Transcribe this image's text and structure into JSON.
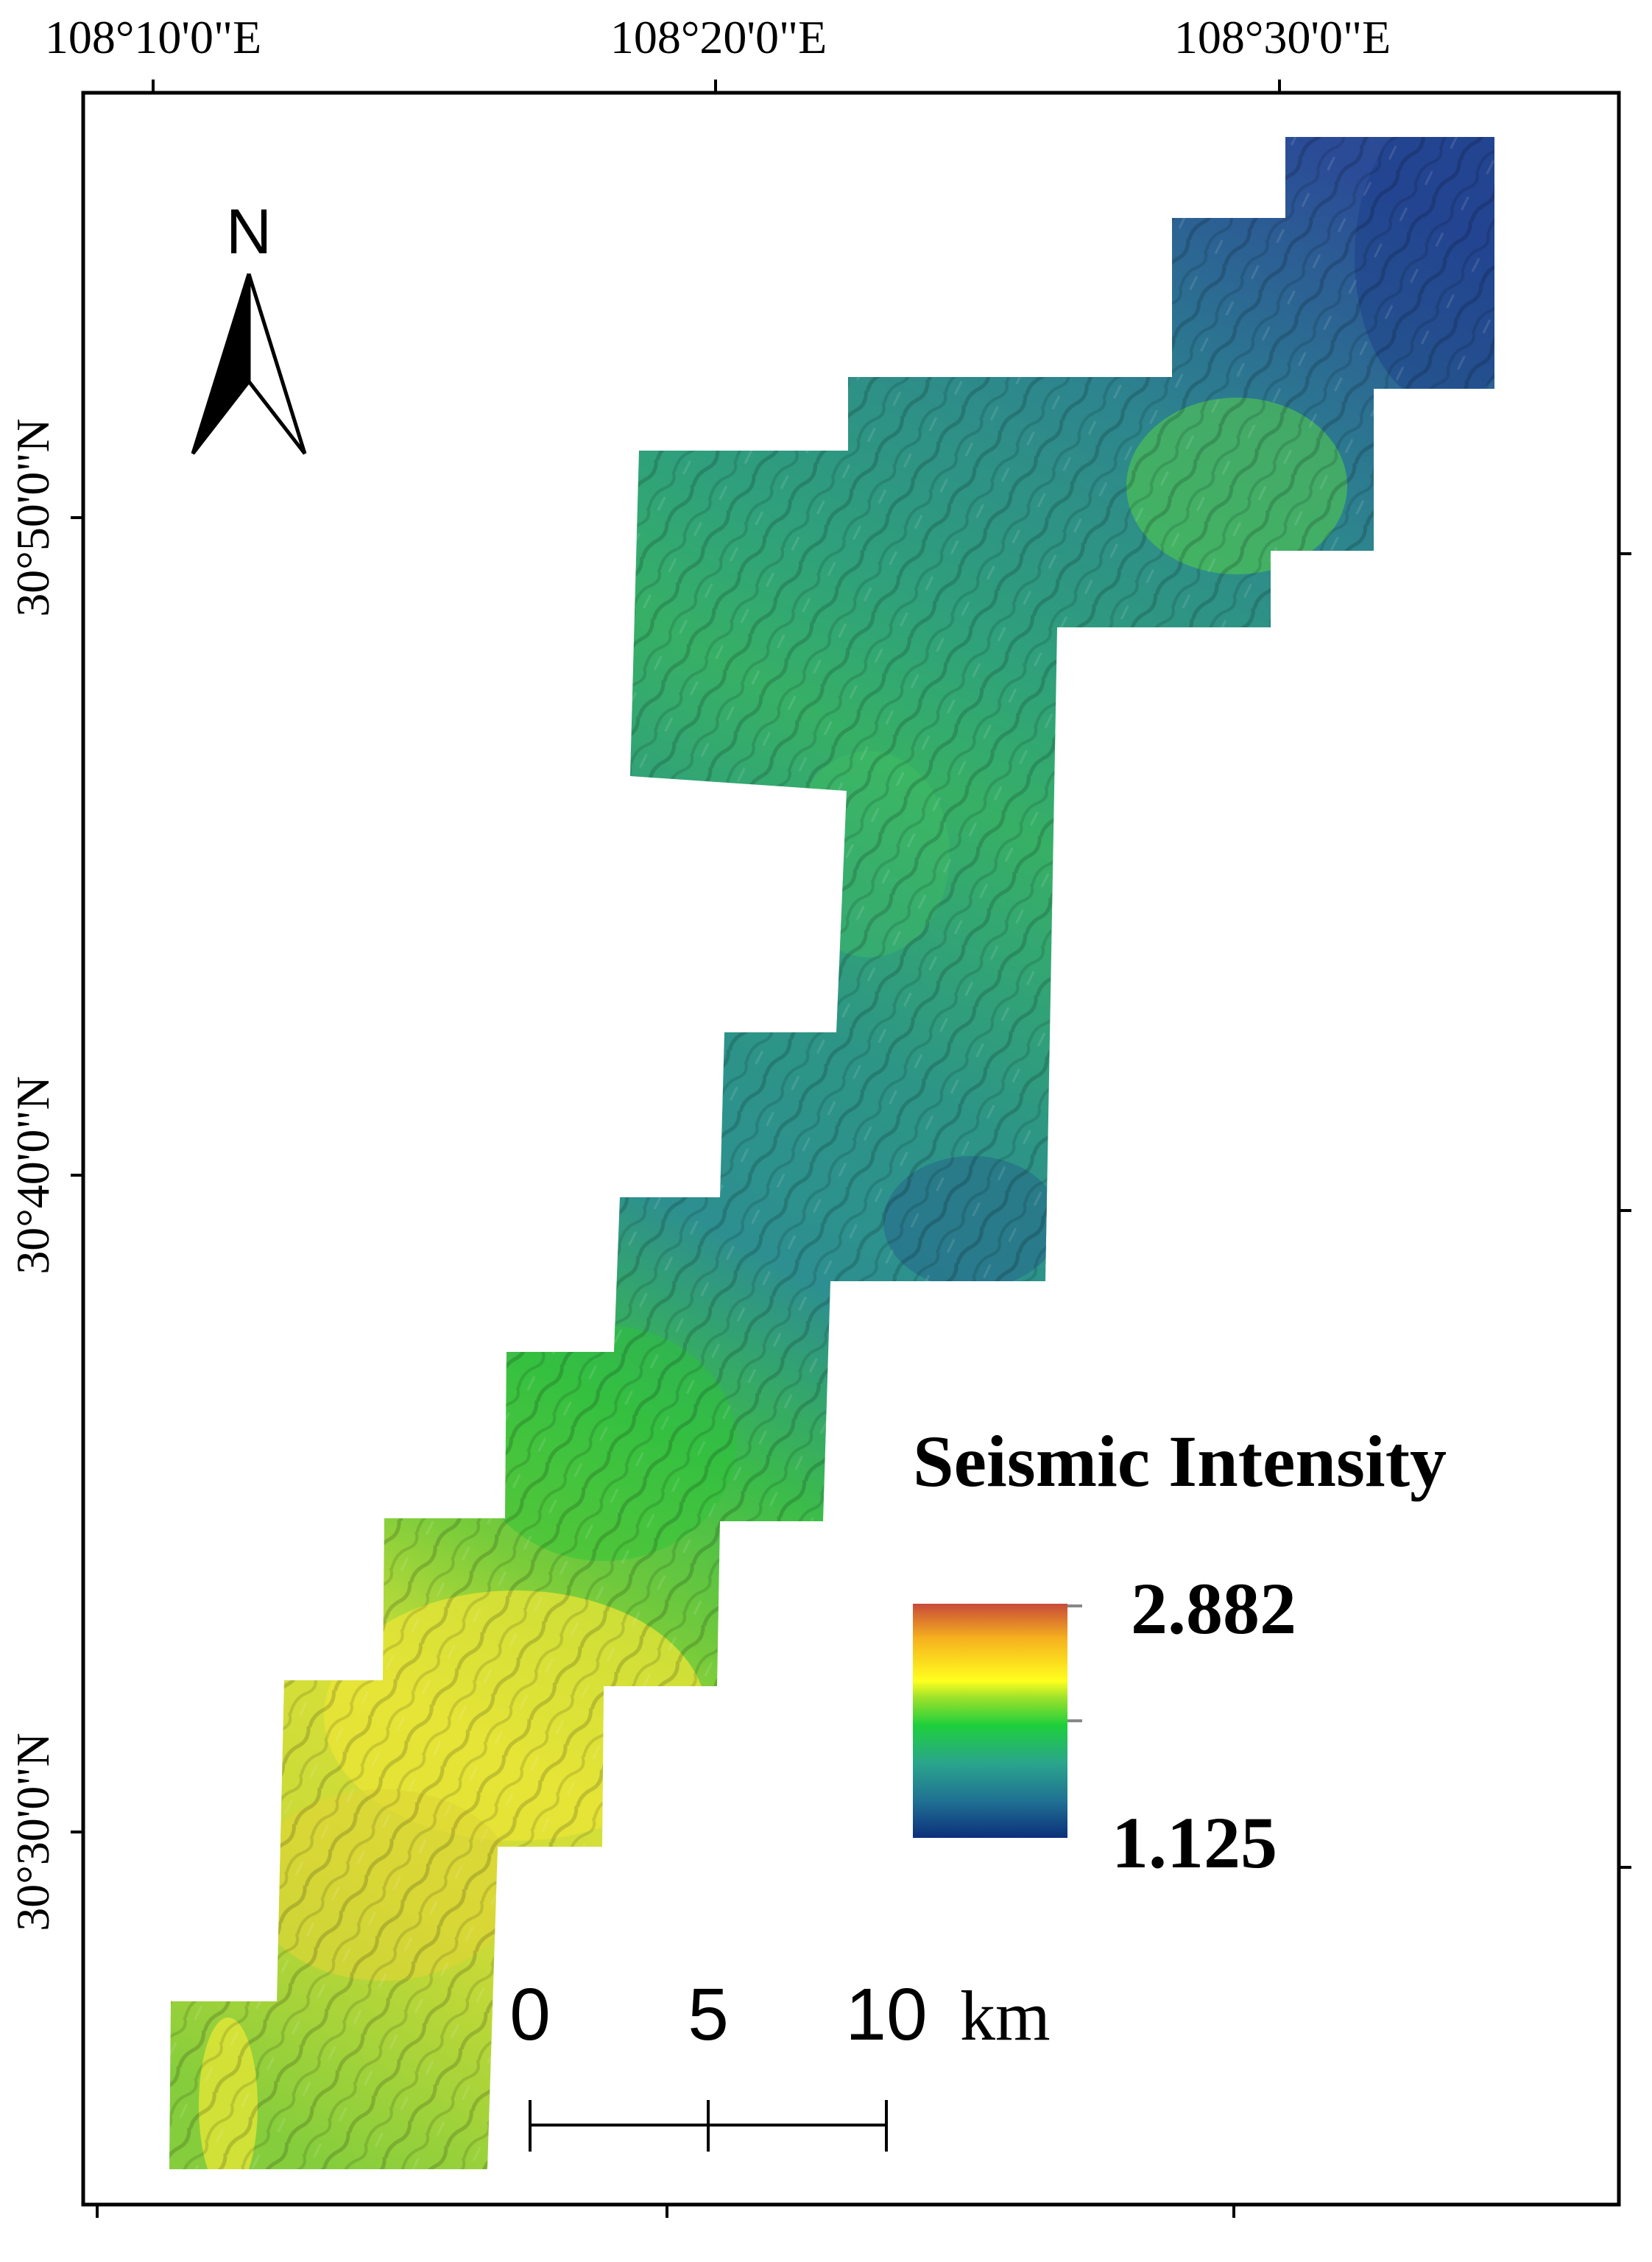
{
  "map": {
    "top_axis_labels": [
      "108°10'0\"E",
      "108°20'0\"E",
      "108°30'0\"E"
    ],
    "left_axis_labels": [
      "30°50'0\"N",
      "30°40'0\"N",
      "30°30'0\"N"
    ],
    "north_arrow": {
      "letter": "N",
      "icon": "north-arrow-icon"
    },
    "legend": {
      "title": "Seismic Intensity",
      "max_label": "2.882",
      "min_label": "1.125",
      "max_value": 2.882,
      "min_value": 1.125,
      "colors": [
        "#0b2f7a",
        "#1f6e93",
        "#2aa58c",
        "#1ecf3c",
        "#9fe22a",
        "#ffff1e",
        "#f6b21e",
        "#c84a3a"
      ]
    },
    "scale_bar": {
      "labels": [
        "0",
        "5",
        "10"
      ],
      "unit": "km",
      "values_km": [
        0,
        5,
        10
      ]
    }
  }
}
